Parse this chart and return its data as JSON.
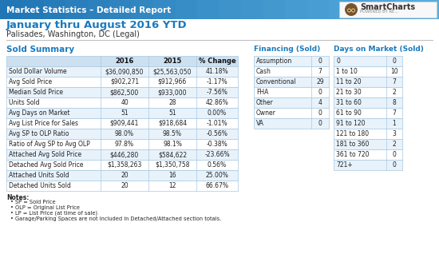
{
  "header_text": "Market Statistics – Detailed Report",
  "header_bg": "#2176b5",
  "header_text_color": "#ffffff",
  "title_line1": "January thru August 2016 YTD",
  "title_line2": "Palisades, Washington, DC (Legal)",
  "title_color": "#1a7abf",
  "subtitle_color": "#333333",
  "section_title_color": "#1a7abf",
  "sold_summary_title": "Sold Summary",
  "sold_headers": [
    "",
    "2016",
    "2015",
    "% Change"
  ],
  "sold_rows": [
    [
      "Sold Dollar Volume",
      "$36,090,850",
      "$25,563,050",
      "41.18%"
    ],
    [
      "Avg Sold Price",
      "$902,271",
      "$912,966",
      "-1.17%"
    ],
    [
      "Median Sold Price",
      "$862,500",
      "$933,000",
      "-7.56%"
    ],
    [
      "Units Sold",
      "40",
      "28",
      "42.86%"
    ],
    [
      "Avg Days on Market",
      "51",
      "51",
      "0.00%"
    ],
    [
      "Avg List Price for Sales",
      "$909,441",
      "$918,684",
      "-1.01%"
    ],
    [
      "Avg SP to OLP Ratio",
      "98.0%",
      "98.5%",
      "-0.56%"
    ],
    [
      "Ratio of Avg SP to Avg OLP",
      "97.8%",
      "98.1%",
      "-0.38%"
    ],
    [
      "Attached Avg Sold Price",
      "$446,280",
      "$584,622",
      "-23.66%"
    ],
    [
      "Detached Avg Sold Price",
      "$1,358,263",
      "$1,350,758",
      "0.56%"
    ],
    [
      "Attached Units Sold",
      "20",
      "16",
      "25.00%"
    ],
    [
      "Detached Units Sold",
      "20",
      "12",
      "66.67%"
    ]
  ],
  "financing_title": "Financing (Sold)",
  "financing_rows": [
    [
      "Assumption",
      "0"
    ],
    [
      "Cash",
      "7"
    ],
    [
      "Conventional",
      "29"
    ],
    [
      "FHA",
      "0"
    ],
    [
      "Other",
      "4"
    ],
    [
      "Owner",
      "0"
    ],
    [
      "VA",
      "0"
    ]
  ],
  "dom_title": "Days on Market (Sold)",
  "dom_rows": [
    [
      "0",
      "0"
    ],
    [
      "1 to 10",
      "10"
    ],
    [
      "11 to 20",
      "7"
    ],
    [
      "21 to 30",
      "2"
    ],
    [
      "31 to 60",
      "8"
    ],
    [
      "61 to 90",
      "7"
    ],
    [
      "91 to 120",
      "1"
    ],
    [
      "121 to 180",
      "3"
    ],
    [
      "181 to 360",
      "2"
    ],
    [
      "361 to 720",
      "0"
    ],
    [
      "721+",
      "0"
    ]
  ],
  "notes_title": "Notes:",
  "notes": [
    "SP = Sold Price",
    "OLP = Original List Price",
    "LP = List Price (at time of sale)",
    "Garage/Parking Spaces are not included in Detached/Attached section totals."
  ],
  "table_header_bg": "#cde0f0",
  "table_row_bg1": "#ffffff",
  "table_row_bg2": "#e8f2fb",
  "table_border": "#a8c8e0",
  "bg_color": "#f0f4f8",
  "content_bg": "#ffffff"
}
